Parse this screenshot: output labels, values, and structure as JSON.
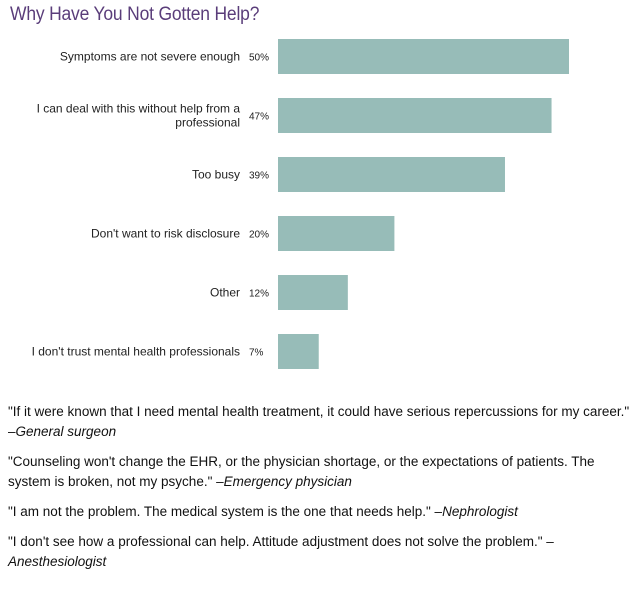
{
  "chart_data": {
    "type": "bar",
    "orientation": "horizontal",
    "title": "Why Have You Not Gotten Help?",
    "categories": [
      [
        "Symptoms are not severe enough"
      ],
      [
        "I can deal with this without help from a",
        "professional"
      ],
      [
        "Too busy"
      ],
      [
        "Don't want to risk disclosure"
      ],
      [
        "Other"
      ],
      [
        "I don't trust mental health professionals"
      ]
    ],
    "values": [
      50,
      47,
      39,
      20,
      12,
      7
    ],
    "value_labels": [
      "50%",
      "47%",
      "39%",
      "20%",
      "12%",
      "7%"
    ],
    "xlim": [
      0,
      50
    ],
    "grid": false,
    "legend": "none",
    "bar_color": "#97bcb8"
  },
  "quotes": [
    {
      "text": "\"If it were known that I need mental health treatment, it could have serious repercussions for my career.\" –",
      "author": "General surgeon"
    },
    {
      "text": "\"Counseling won't change the EHR, or the physician shortage, or the expectations of patients. The system is broken, not my psyche.\" –",
      "author": "Emergency physician"
    },
    {
      "text": "\"I am not the problem. The medical system is the one that needs help.\" –",
      "author": "Nephrologist"
    },
    {
      "text": "\"I don't see how a professional can help. Attitude adjustment does not solve the problem.\" –",
      "author": "Anesthesiologist"
    }
  ]
}
